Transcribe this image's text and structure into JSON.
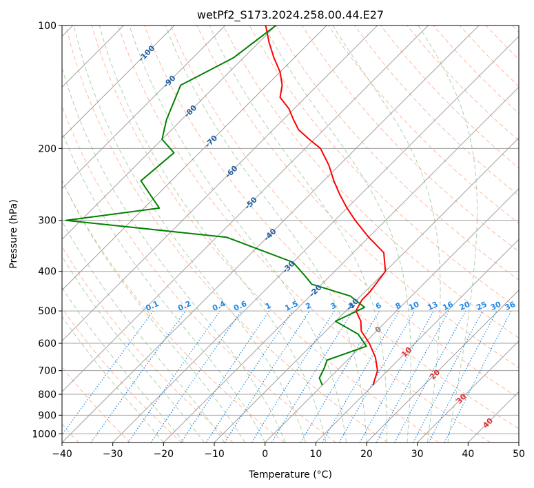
{
  "chart_data": {
    "type": "skew-t",
    "title": "wetPf2_S173.2024.258.00.44.E27",
    "xlabel": "Temperature (°C)",
    "ylabel": "Pressure (hPa)",
    "xlim": [
      -40,
      50
    ],
    "ylim": [
      1050,
      100
    ],
    "y_scale": "log",
    "grid": true,
    "x_ticks": [
      "−40",
      "−30",
      "−20",
      "−10",
      "0",
      "10",
      "20",
      "30",
      "40",
      "50"
    ],
    "y_ticks": [
      "100",
      "200",
      "300",
      "400",
      "500",
      "600",
      "700",
      "800",
      "900",
      "1000"
    ],
    "series": [
      {
        "color": "#ff0000",
        "points": [
          [
            -82,
            100
          ],
          [
            -78,
            110
          ],
          [
            -74,
            120
          ],
          [
            -70,
            130
          ],
          [
            -67,
            140
          ],
          [
            -65,
            150
          ],
          [
            -61,
            160
          ],
          [
            -58,
            170
          ],
          [
            -55,
            180
          ],
          [
            -51,
            190
          ],
          [
            -47,
            200
          ],
          [
            -42,
            220
          ],
          [
            -38,
            240
          ],
          [
            -34,
            260
          ],
          [
            -30,
            280
          ],
          [
            -26,
            300
          ],
          [
            -20,
            330
          ],
          [
            -14,
            360
          ],
          [
            -10,
            400
          ],
          [
            -9,
            450
          ],
          [
            -9,
            470
          ],
          [
            -8,
            500
          ],
          [
            -5,
            530
          ],
          [
            -3,
            560
          ],
          [
            1,
            600
          ],
          [
            5,
            650
          ],
          [
            8,
            700
          ],
          [
            9,
            730
          ],
          [
            10,
            760
          ]
        ]
      },
      {
        "color": "#008000",
        "points": [
          [
            -80,
            100
          ],
          [
            -82,
            120
          ],
          [
            -87,
            140
          ],
          [
            -83,
            170
          ],
          [
            -80,
            190
          ],
          [
            -75,
            205
          ],
          [
            -76,
            240
          ],
          [
            -67,
            280
          ],
          [
            -83,
            300
          ],
          [
            -48,
            330
          ],
          [
            -30,
            380
          ],
          [
            -25,
            410
          ],
          [
            -22,
            430
          ],
          [
            -12,
            460
          ],
          [
            -7,
            490
          ],
          [
            -10,
            530
          ],
          [
            -3,
            570
          ],
          [
            1,
            610
          ],
          [
            -4,
            660
          ],
          [
            -3,
            690
          ],
          [
            -2,
            730
          ],
          [
            0,
            760
          ]
        ]
      }
    ],
    "mixing_ratio_labels": [
      "0.1",
      "0.2",
      "0.4",
      "0.6",
      "1",
      "1.5",
      "2",
      "3",
      "4",
      "6",
      "8",
      "10",
      "13",
      "16",
      "20",
      "25",
      "30",
      "36"
    ],
    "dry_adiabat_labels": [
      "-100",
      "-90",
      "-80",
      "-70",
      "-60",
      "-50",
      "-40",
      "-30",
      "-20",
      "-10",
      "0",
      "10",
      "20",
      "30",
      "40"
    ],
    "colors": {
      "temperature": "#ff0000",
      "dewpoint": "#008000",
      "isotherm": "#a0a0a0",
      "dry_adiabat": "#ffa07a",
      "moist_adiabat": "#90c090",
      "mixing_ratio": "#1e88e5",
      "cold_label": "#1f5f9f",
      "warm_label": "#e03030",
      "zero_label": "#808080"
    }
  }
}
